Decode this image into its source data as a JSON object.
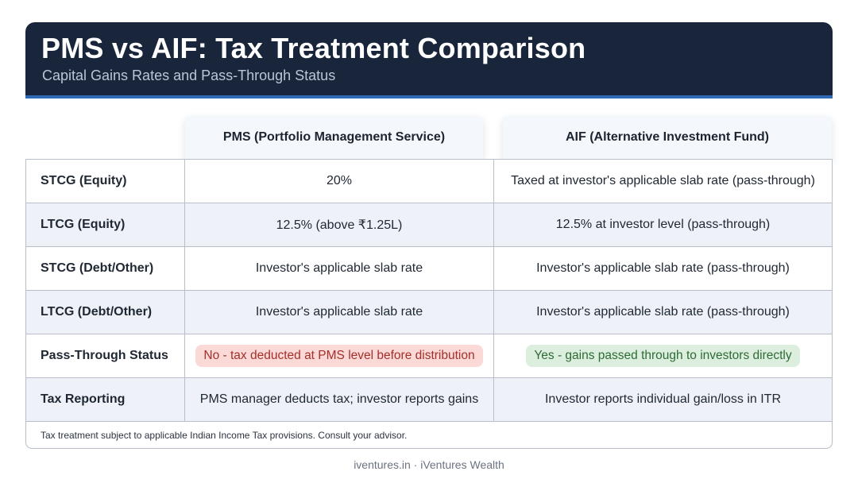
{
  "header": {
    "title": "PMS vs AIF: Tax Treatment Comparison",
    "subtitle": "Capital Gains Rates and Pass-Through Status"
  },
  "columns": {
    "pms": "PMS (Portfolio Management Service)",
    "aif": "AIF (Alternative Investment Fund)"
  },
  "rows": [
    {
      "label": "STCG (Equity)",
      "pms": "20%",
      "aif": "Taxed at investor's applicable slab rate (pass-through)"
    },
    {
      "label": "LTCG (Equity)",
      "pms": "12.5% (above ₹1.25L)",
      "aif": "12.5% at investor level (pass-through)"
    },
    {
      "label": "STCG (Debt/Other)",
      "pms": "Investor's applicable slab rate",
      "aif": "Investor's applicable slab rate (pass-through)"
    },
    {
      "label": "LTCG (Debt/Other)",
      "pms": "Investor's applicable slab rate",
      "aif": "Investor's applicable slab rate (pass-through)"
    },
    {
      "label": "Pass-Through Status",
      "pms": "No - tax deducted at PMS level before distribution",
      "aif": "Yes - gains passed through to investors directly"
    },
    {
      "label": "Tax Reporting",
      "pms": "PMS manager deducts tax; investor reports gains",
      "aif": "Investor reports individual gain/loss in ITR"
    }
  ],
  "note": "Tax treatment subject to applicable Indian Income Tax provisions. Consult your advisor.",
  "footer": "iventures.in · iVentures Wealth",
  "colors": {
    "header_bg": "#18253a",
    "header_accent": "#2f68b5",
    "no_pill_bg": "#fbd9d7",
    "no_pill_text": "#a3302a",
    "yes_pill_bg": "#dceedd",
    "yes_pill_text": "#2f6b36"
  }
}
